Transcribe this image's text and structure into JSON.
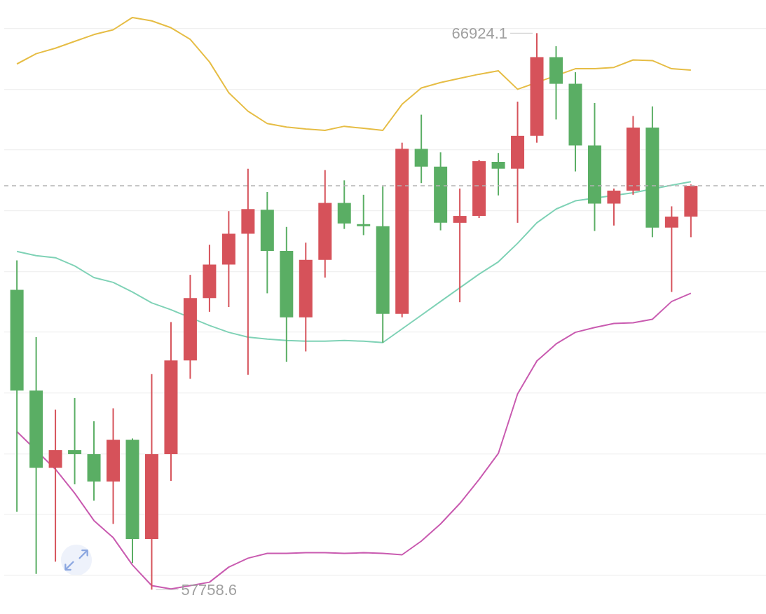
{
  "chart_data": {
    "type": "candlestick",
    "categories": [
      null,
      null,
      null,
      null,
      null,
      null,
      null,
      null,
      null,
      null,
      null,
      null,
      null,
      null,
      null,
      null,
      null,
      null,
      null,
      null,
      null,
      null,
      null,
      null,
      null,
      null,
      null,
      null,
      null,
      null,
      null,
      null,
      null,
      null,
      null,
      null
    ],
    "ohlc": [
      [
        62696,
        63181,
        59043,
        61039
      ],
      [
        61039,
        61918,
        58018,
        59765
      ],
      [
        59765,
        60723,
        58220,
        60058
      ],
      [
        60058,
        60915,
        59494,
        59990
      ],
      [
        59990,
        60532,
        59224,
        59540
      ],
      [
        59540,
        60746,
        58841,
        60227
      ],
      [
        60227,
        60250,
        58198,
        58593
      ],
      [
        58593,
        61310,
        57758.6,
        59990
      ],
      [
        59990,
        62166,
        59551,
        61535
      ],
      [
        61535,
        62944,
        61231,
        62561
      ],
      [
        62561,
        63440,
        62335,
        63113
      ],
      [
        63113,
        63993,
        62414,
        63621
      ],
      [
        63621,
        64692,
        61298,
        64027
      ],
      [
        64015,
        64308,
        62640,
        63339
      ],
      [
        63339,
        63733,
        61512,
        62245
      ],
      [
        62245,
        63474,
        61682,
        63192
      ],
      [
        63192,
        64669,
        62899,
        64128
      ],
      [
        64128,
        64500,
        63700,
        63790
      ],
      [
        63779,
        64263,
        63598,
        63745
      ],
      [
        63745,
        64399,
        61828,
        62302
      ],
      [
        62302,
        65120,
        62245,
        65019
      ],
      [
        65019,
        65582,
        64455,
        64726
      ],
      [
        64726,
        64962,
        63677,
        63801
      ],
      [
        63801,
        64365,
        62493,
        63914
      ],
      [
        63914,
        64838,
        63880,
        64816
      ],
      [
        64804,
        64951,
        64252,
        64692
      ],
      [
        64692,
        65797,
        63801,
        65233
      ],
      [
        65233,
        66924.1,
        65120,
        66529
      ],
      [
        66529,
        66710,
        65503,
        66090
      ],
      [
        66090,
        66281,
        64647,
        65075
      ],
      [
        65075,
        65774,
        63666,
        64117
      ],
      [
        64117,
        64365,
        63756,
        64331
      ],
      [
        64331,
        65560,
        64263,
        65368
      ],
      [
        65368,
        65718,
        63564,
        63722
      ],
      [
        63722,
        64072,
        62662,
        63903
      ],
      [
        63903,
        64432,
        63564,
        64410
      ]
    ],
    "colors": [
      "#5aae64",
      "#5aae64",
      "#d6525a",
      "#5aae64",
      "#5aae64",
      "#d6525a",
      "#5aae64",
      "#d6525a",
      "#d6525a",
      "#d6525a",
      "#d6525a",
      "#d6525a",
      "#d6525a",
      "#5aae64",
      "#5aae64",
      "#d6525a",
      "#d6525a",
      "#5aae64",
      "#5aae64",
      "#5aae64",
      "#d6525a",
      "#5aae64",
      "#5aae64",
      "#d6525a",
      "#d6525a",
      "#5aae64",
      "#d6525a",
      "#d6525a",
      "#5aae64",
      "#5aae64",
      "#5aae64",
      "#d6525a",
      "#d6525a",
      "#5aae64",
      "#d6525a",
      "#d6525a"
    ],
    "series": [
      {
        "type": "line",
        "color": "#e6bd45",
        "values": [
          66417,
          66586,
          66676,
          66789,
          66901,
          66980,
          67183,
          67127,
          67014,
          66823,
          66450,
          65943,
          65639,
          65436,
          65379,
          65346,
          65323,
          65391,
          65357,
          65323,
          65752,
          66022,
          66112,
          66180,
          66248,
          66304,
          66000,
          null,
          null,
          66338,
          66338,
          66360,
          66484,
          66473,
          66338,
          66315
        ]
      },
      {
        "type": "line",
        "color": "#7fd2b6",
        "values": [
          63328,
          63260,
          63226,
          63091,
          62899,
          62820,
          62662,
          62482,
          62369,
          null,
          62110,
          61997,
          61918,
          61885,
          61862,
          61851,
          61851,
          61862,
          61851,
          61828,
          62054,
          62279,
          62505,
          62730,
          62956,
          63158,
          63463,
          63801,
          64027,
          64162,
          null,
          null,
          64297,
          null,
          64421,
          64478
        ]
      },
      {
        "type": "line",
        "color": "#c95bb0",
        "values": [
          60363,
          null,
          59742,
          59348,
          58897,
          58615,
          58164,
          57826,
          57770,
          57826,
          57882,
          58130,
          58277,
          58356,
          58356,
          58367,
          58367,
          58356,
          58367,
          58356,
          58333,
          58559,
          58841,
          59179,
          59573,
          60002,
          60983,
          61524,
          61806,
          61997,
          62076,
          62144,
          62155,
          62211,
          62505,
          62640
        ]
      }
    ],
    "yticks": [
      {
        "value": 58000,
        "label": null
      },
      {
        "value": 59000,
        "label": null
      },
      {
        "value": 60000,
        "label": null
      },
      {
        "value": 61000,
        "label": null
      },
      {
        "value": 62000,
        "label": null
      },
      {
        "value": 63000,
        "label": null
      },
      {
        "value": 64000,
        "label": null
      },
      {
        "value": 65000,
        "label": null
      },
      {
        "value": 66000,
        "label": null
      },
      {
        "value": 67000,
        "label": null
      }
    ],
    "grid": "y",
    "ref_lines": [
      {
        "axis": "y",
        "value": 64410,
        "color": "#b4b4b4",
        "line_style": "dashed"
      }
    ],
    "annotations": [
      "66924.1",
      "57758.6"
    ]
  }
}
